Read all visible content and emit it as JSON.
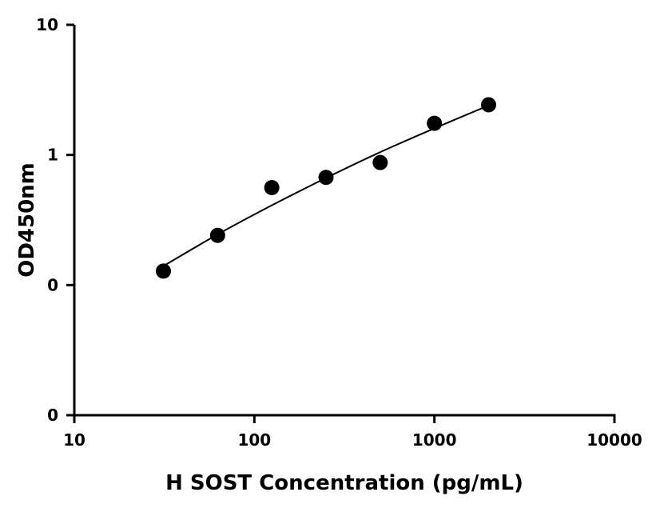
{
  "chart_data": {
    "type": "scatter",
    "title": "",
    "xlabel": "H SOST Concentration (pg/mL)",
    "ylabel": "OD450nm",
    "x_scale": "log",
    "y_scale": "log",
    "xlim": [
      10,
      10000
    ],
    "ylim": [
      0.01,
      10
    ],
    "x_ticks": [
      {
        "value": 10,
        "label": "10"
      },
      {
        "value": 100,
        "label": "100"
      },
      {
        "value": 1000,
        "label": "1000"
      },
      {
        "value": 10000,
        "label": "10000"
      }
    ],
    "y_ticks": [
      {
        "value": 10,
        "label": "10"
      },
      {
        "value": 1,
        "label": "1"
      },
      {
        "value": 0.1,
        "label": "0"
      },
      {
        "value": 0.01,
        "label": "0"
      }
    ],
    "grid": false,
    "legend": "none",
    "series": [
      {
        "x": [
          31.25,
          62.5,
          125,
          250,
          500,
          1000,
          2000
        ],
        "y": [
          0.128,
          0.241,
          0.561,
          0.672,
          0.874,
          1.75,
          2.43
        ]
      }
    ],
    "fit_curve": {
      "x": [
        31.25,
        62.5,
        125,
        250,
        500,
        1000,
        2000
      ],
      "y": [
        0.14,
        0.245,
        0.41,
        0.665,
        1.05,
        1.6,
        2.4
      ]
    },
    "colors": {
      "marker": "#000000",
      "line": "#000000",
      "axis": "#000000"
    }
  }
}
